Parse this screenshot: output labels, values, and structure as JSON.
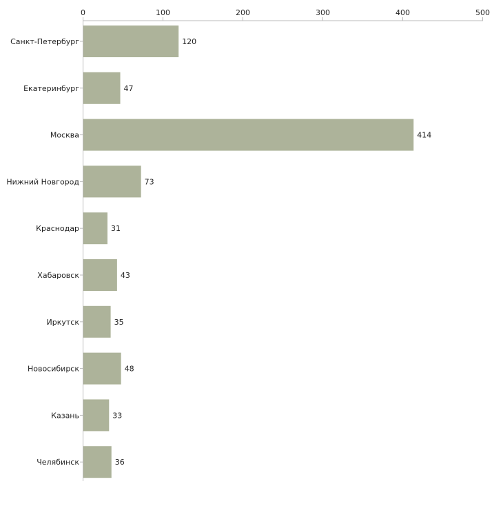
{
  "chart_data": {
    "type": "bar",
    "orientation": "horizontal",
    "title": "",
    "xlabel": "",
    "ylabel": "",
    "xlim": [
      0,
      500
    ],
    "x_ticks": [
      0,
      100,
      200,
      300,
      400,
      500
    ],
    "x_tick_labels": [
      "0",
      "100",
      "200",
      "300",
      "400",
      "500"
    ],
    "x_axis_position": "top",
    "grid": false,
    "legend": "none",
    "categories": [
      "Санкт-Петербург",
      "Екатеринбург",
      "Москва",
      "Нижний Новгород",
      "Краснодар",
      "Хабаровск",
      "Иркутск",
      "Новосибирск",
      "Казань",
      "Челябинск"
    ],
    "values": [
      120,
      47,
      414,
      73,
      31,
      43,
      35,
      48,
      33,
      36
    ],
    "value_labels": [
      "120",
      "47",
      "414",
      "73",
      "31",
      "43",
      "35",
      "48",
      "33",
      "36"
    ],
    "bar_color": "#adb39a",
    "axis_color": "#bbbbbb"
  }
}
